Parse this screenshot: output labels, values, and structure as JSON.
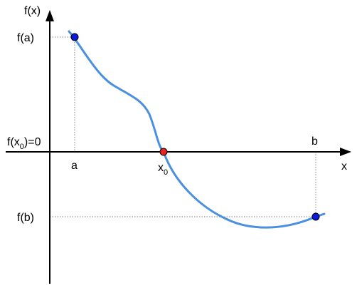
{
  "labels": {
    "y_axis": "f(x)",
    "x_axis": "x",
    "fa": "f(a)",
    "fb": "f(b)",
    "fx0_prefix": "f(x",
    "fx0_sub": "0",
    "fx0_suffix": ")=0",
    "a": "a",
    "b": "b",
    "x0_main": "x",
    "x0_sub": "0"
  },
  "colors": {
    "curve": "#4a8fe0",
    "endpoint": "#0a1ad6",
    "root": "#e8221e",
    "axis": "#000000",
    "guide": "#808080"
  }
}
